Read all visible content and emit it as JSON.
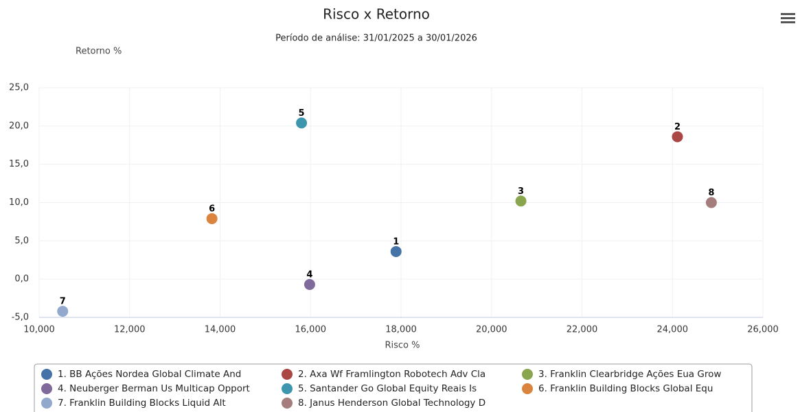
{
  "chart_data": {
    "type": "scatter",
    "title": "Risco x Retorno",
    "subtitle": "Período de análise: 31/01/2025 a 30/01/2026",
    "y_label": "Retorno %",
    "x_label": "Risco %",
    "xlim": [
      10,
      26
    ],
    "xticks": [
      {
        "value": 10,
        "label": "10,000"
      },
      {
        "value": 12,
        "label": "12,000"
      },
      {
        "value": 14,
        "label": "14,000"
      },
      {
        "value": 16,
        "label": "16,000"
      },
      {
        "value": 18,
        "label": "18,000"
      },
      {
        "value": 20,
        "label": "20,000"
      },
      {
        "value": 22,
        "label": "22,000"
      },
      {
        "value": 24,
        "label": "24,000"
      },
      {
        "value": 26,
        "label": "26,000"
      }
    ],
    "ylim": [
      -5,
      25
    ],
    "yticks": [
      {
        "value": -5,
        "label": "-5,0"
      },
      {
        "value": 0,
        "label": "0,0"
      },
      {
        "value": 5,
        "label": "5,0"
      },
      {
        "value": 10,
        "label": "10,0"
      },
      {
        "value": 15,
        "label": "15,0"
      },
      {
        "value": 20,
        "label": "20,0"
      },
      {
        "value": 25,
        "label": "25,0"
      }
    ],
    "grid": true,
    "legend": "bottom",
    "series": [
      {
        "name": "1. BB Ações Nordea Global Climate And",
        "label": "1",
        "color": "#4572a7",
        "x": [
          17.89
        ],
        "values": [
          3.6
        ]
      },
      {
        "name": "2. Axa Wf Framlington Robotech Adv Cla",
        "label": "2",
        "color": "#aa4643",
        "x": [
          24.11
        ],
        "values": [
          18.6
        ]
      },
      {
        "name": "3. Franklin Clearbridge Ações Eua Grow",
        "label": "3",
        "color": "#89a54e",
        "x": [
          20.65
        ],
        "values": [
          10.2
        ]
      },
      {
        "name": "4. Neuberger Berman Us Multicap Opport",
        "label": "4",
        "color": "#80699b",
        "x": [
          15.98
        ],
        "values": [
          -0.7
        ]
      },
      {
        "name": "5. Santander Go Global Equity Reais Is",
        "label": "5",
        "color": "#3d96ae",
        "x": [
          15.8
        ],
        "values": [
          20.4
        ]
      },
      {
        "name": "6. Franklin Building Blocks Global Equ",
        "label": "6",
        "color": "#db843d",
        "x": [
          13.82
        ],
        "values": [
          7.9
        ]
      },
      {
        "name": "7. Franklin Building Blocks Liquid Alt",
        "label": "7",
        "color": "#92a8cd",
        "x": [
          10.52
        ],
        "values": [
          -4.2
        ]
      },
      {
        "name": "8. Janus Henderson Global Technology D",
        "label": "8",
        "color": "#a47d7c",
        "x": [
          24.86
        ],
        "values": [
          10.0
        ]
      }
    ]
  }
}
